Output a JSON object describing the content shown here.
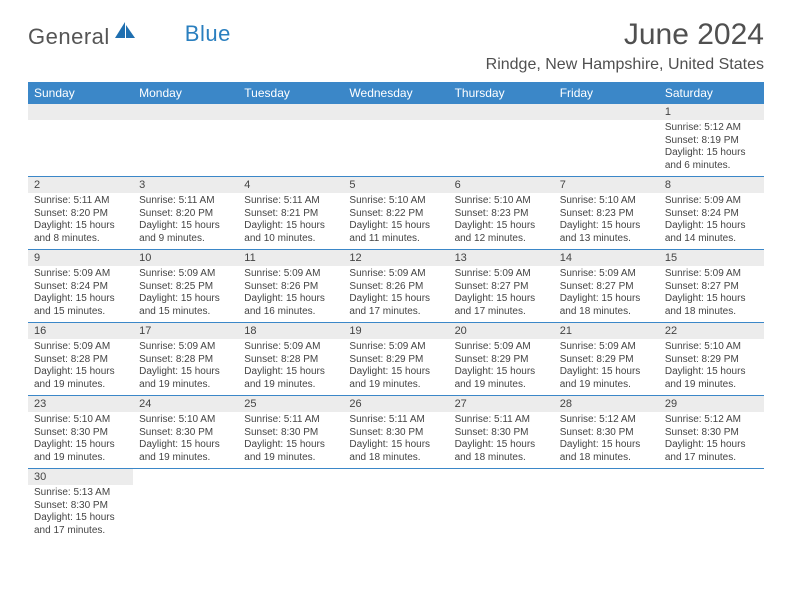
{
  "logo": {
    "part1": "General",
    "part2": "Blue"
  },
  "title": "June 2024",
  "location": "Rindge, New Hampshire, United States",
  "day_headers": [
    "Sunday",
    "Monday",
    "Tuesday",
    "Wednesday",
    "Thursday",
    "Friday",
    "Saturday"
  ],
  "colors": {
    "header_bg": "#3b87c8",
    "header_text": "#ffffff",
    "daynum_bg": "#ececec",
    "border": "#3b87c8",
    "text": "#444444",
    "title_text": "#505050",
    "logo_gray": "#555555",
    "logo_blue": "#2a7fbf"
  },
  "weeks": [
    [
      null,
      null,
      null,
      null,
      null,
      null,
      {
        "n": "1",
        "sr": "Sunrise: 5:12 AM",
        "ss": "Sunset: 8:19 PM",
        "d1": "Daylight: 15 hours",
        "d2": "and 6 minutes."
      }
    ],
    [
      {
        "n": "2",
        "sr": "Sunrise: 5:11 AM",
        "ss": "Sunset: 8:20 PM",
        "d1": "Daylight: 15 hours",
        "d2": "and 8 minutes."
      },
      {
        "n": "3",
        "sr": "Sunrise: 5:11 AM",
        "ss": "Sunset: 8:20 PM",
        "d1": "Daylight: 15 hours",
        "d2": "and 9 minutes."
      },
      {
        "n": "4",
        "sr": "Sunrise: 5:11 AM",
        "ss": "Sunset: 8:21 PM",
        "d1": "Daylight: 15 hours",
        "d2": "and 10 minutes."
      },
      {
        "n": "5",
        "sr": "Sunrise: 5:10 AM",
        "ss": "Sunset: 8:22 PM",
        "d1": "Daylight: 15 hours",
        "d2": "and 11 minutes."
      },
      {
        "n": "6",
        "sr": "Sunrise: 5:10 AM",
        "ss": "Sunset: 8:23 PM",
        "d1": "Daylight: 15 hours",
        "d2": "and 12 minutes."
      },
      {
        "n": "7",
        "sr": "Sunrise: 5:10 AM",
        "ss": "Sunset: 8:23 PM",
        "d1": "Daylight: 15 hours",
        "d2": "and 13 minutes."
      },
      {
        "n": "8",
        "sr": "Sunrise: 5:09 AM",
        "ss": "Sunset: 8:24 PM",
        "d1": "Daylight: 15 hours",
        "d2": "and 14 minutes."
      }
    ],
    [
      {
        "n": "9",
        "sr": "Sunrise: 5:09 AM",
        "ss": "Sunset: 8:24 PM",
        "d1": "Daylight: 15 hours",
        "d2": "and 15 minutes."
      },
      {
        "n": "10",
        "sr": "Sunrise: 5:09 AM",
        "ss": "Sunset: 8:25 PM",
        "d1": "Daylight: 15 hours",
        "d2": "and 15 minutes."
      },
      {
        "n": "11",
        "sr": "Sunrise: 5:09 AM",
        "ss": "Sunset: 8:26 PM",
        "d1": "Daylight: 15 hours",
        "d2": "and 16 minutes."
      },
      {
        "n": "12",
        "sr": "Sunrise: 5:09 AM",
        "ss": "Sunset: 8:26 PM",
        "d1": "Daylight: 15 hours",
        "d2": "and 17 minutes."
      },
      {
        "n": "13",
        "sr": "Sunrise: 5:09 AM",
        "ss": "Sunset: 8:27 PM",
        "d1": "Daylight: 15 hours",
        "d2": "and 17 minutes."
      },
      {
        "n": "14",
        "sr": "Sunrise: 5:09 AM",
        "ss": "Sunset: 8:27 PM",
        "d1": "Daylight: 15 hours",
        "d2": "and 18 minutes."
      },
      {
        "n": "15",
        "sr": "Sunrise: 5:09 AM",
        "ss": "Sunset: 8:27 PM",
        "d1": "Daylight: 15 hours",
        "d2": "and 18 minutes."
      }
    ],
    [
      {
        "n": "16",
        "sr": "Sunrise: 5:09 AM",
        "ss": "Sunset: 8:28 PM",
        "d1": "Daylight: 15 hours",
        "d2": "and 19 minutes."
      },
      {
        "n": "17",
        "sr": "Sunrise: 5:09 AM",
        "ss": "Sunset: 8:28 PM",
        "d1": "Daylight: 15 hours",
        "d2": "and 19 minutes."
      },
      {
        "n": "18",
        "sr": "Sunrise: 5:09 AM",
        "ss": "Sunset: 8:28 PM",
        "d1": "Daylight: 15 hours",
        "d2": "and 19 minutes."
      },
      {
        "n": "19",
        "sr": "Sunrise: 5:09 AM",
        "ss": "Sunset: 8:29 PM",
        "d1": "Daylight: 15 hours",
        "d2": "and 19 minutes."
      },
      {
        "n": "20",
        "sr": "Sunrise: 5:09 AM",
        "ss": "Sunset: 8:29 PM",
        "d1": "Daylight: 15 hours",
        "d2": "and 19 minutes."
      },
      {
        "n": "21",
        "sr": "Sunrise: 5:09 AM",
        "ss": "Sunset: 8:29 PM",
        "d1": "Daylight: 15 hours",
        "d2": "and 19 minutes."
      },
      {
        "n": "22",
        "sr": "Sunrise: 5:10 AM",
        "ss": "Sunset: 8:29 PM",
        "d1": "Daylight: 15 hours",
        "d2": "and 19 minutes."
      }
    ],
    [
      {
        "n": "23",
        "sr": "Sunrise: 5:10 AM",
        "ss": "Sunset: 8:30 PM",
        "d1": "Daylight: 15 hours",
        "d2": "and 19 minutes."
      },
      {
        "n": "24",
        "sr": "Sunrise: 5:10 AM",
        "ss": "Sunset: 8:30 PM",
        "d1": "Daylight: 15 hours",
        "d2": "and 19 minutes."
      },
      {
        "n": "25",
        "sr": "Sunrise: 5:11 AM",
        "ss": "Sunset: 8:30 PM",
        "d1": "Daylight: 15 hours",
        "d2": "and 19 minutes."
      },
      {
        "n": "26",
        "sr": "Sunrise: 5:11 AM",
        "ss": "Sunset: 8:30 PM",
        "d1": "Daylight: 15 hours",
        "d2": "and 18 minutes."
      },
      {
        "n": "27",
        "sr": "Sunrise: 5:11 AM",
        "ss": "Sunset: 8:30 PM",
        "d1": "Daylight: 15 hours",
        "d2": "and 18 minutes."
      },
      {
        "n": "28",
        "sr": "Sunrise: 5:12 AM",
        "ss": "Sunset: 8:30 PM",
        "d1": "Daylight: 15 hours",
        "d2": "and 18 minutes."
      },
      {
        "n": "29",
        "sr": "Sunrise: 5:12 AM",
        "ss": "Sunset: 8:30 PM",
        "d1": "Daylight: 15 hours",
        "d2": "and 17 minutes."
      }
    ],
    [
      {
        "n": "30",
        "sr": "Sunrise: 5:13 AM",
        "ss": "Sunset: 8:30 PM",
        "d1": "Daylight: 15 hours",
        "d2": "and 17 minutes."
      },
      null,
      null,
      null,
      null,
      null,
      null
    ]
  ]
}
